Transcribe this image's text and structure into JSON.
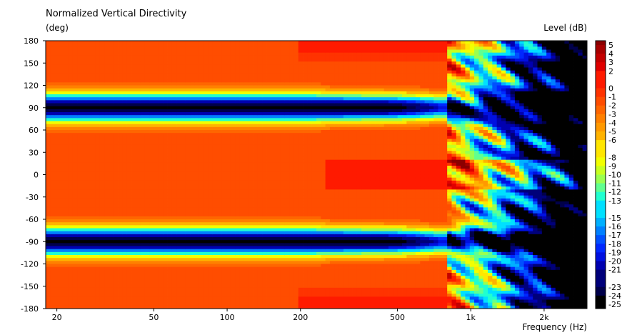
{
  "chart_data": {
    "type": "heatmap",
    "title": "Normalized Vertical Directivity",
    "ylabel": "(deg)",
    "xlabel": "Frequency  (Hz)",
    "colorbar_label": "Level  (dB)",
    "x_scale": "log",
    "xlim": [
      18,
      3000
    ],
    "ylim": [
      -180,
      180
    ],
    "x_ticks": [
      20,
      50,
      100,
      200,
      500,
      1000,
      2000
    ],
    "x_tick_labels": [
      "20",
      "50",
      "100",
      "200",
      "500",
      "1k",
      "2k"
    ],
    "y_ticks": [
      180,
      150,
      120,
      90,
      60,
      30,
      0,
      -30,
      -60,
      -90,
      -120,
      -150,
      -180
    ],
    "y_tick_labels": [
      "180",
      "150",
      "120",
      "90",
      "60",
      "30",
      "0",
      "-30",
      "-60",
      "-90",
      "-120",
      "-150",
      "-180"
    ],
    "colorbar": [
      {
        "db": 5,
        "label": "5",
        "color": "#8b0000"
      },
      {
        "db": 4,
        "label": "4",
        "color": "#a80000"
      },
      {
        "db": 3,
        "label": "3",
        "color": "#c40000"
      },
      {
        "db": 2,
        "label": "2",
        "color": "#e00000"
      },
      {
        "db": 0,
        "label": "0",
        "color": "#ff1a00"
      },
      {
        "db": -1,
        "label": "-1",
        "color": "#ff3300"
      },
      {
        "db": -2,
        "label": "-2",
        "color": "#ff4d00"
      },
      {
        "db": -3,
        "label": "-3",
        "color": "#ff6600"
      },
      {
        "db": -4,
        "label": "-4",
        "color": "#ff8000"
      },
      {
        "db": -5,
        "label": "-5",
        "color": "#ff9900"
      },
      {
        "db": -6,
        "label": "-6",
        "color": "#ffb300"
      },
      {
        "db": -8,
        "label": "-8",
        "color": "#ffe600"
      },
      {
        "db": -9,
        "label": "-9",
        "color": "#f2ff00"
      },
      {
        "db": -10,
        "label": "-10",
        "color": "#c8ff20"
      },
      {
        "db": -11,
        "label": "-11",
        "color": "#9aff50"
      },
      {
        "db": -12,
        "label": "-12",
        "color": "#60ff90"
      },
      {
        "db": -13,
        "label": "-13",
        "color": "#20ffd0"
      },
      {
        "db": -15,
        "label": "-15",
        "color": "#00e0ff"
      },
      {
        "db": -16,
        "label": "-16",
        "color": "#00b0ff"
      },
      {
        "db": -17,
        "label": "-17",
        "color": "#0080ff"
      },
      {
        "db": -18,
        "label": "-18",
        "color": "#0050ff"
      },
      {
        "db": -19,
        "label": "-19",
        "color": "#0028ff"
      },
      {
        "db": -20,
        "label": "-20",
        "color": "#0010e0"
      },
      {
        "db": -21,
        "label": "-21",
        "color": "#0000b0"
      },
      {
        "db": -23,
        "label": "-23",
        "color": "#00007a"
      },
      {
        "db": -24,
        "label": "-24",
        "color": "#00004a"
      },
      {
        "db": -25,
        "label": "-25",
        "color": "#000000"
      }
    ],
    "field_description_for_render": {
      "main_lobe_db": -1,
      "null_angles_deg": [
        90,
        -90
      ],
      "null_level_db": -25,
      "breakup_start_hz": 800
    }
  }
}
